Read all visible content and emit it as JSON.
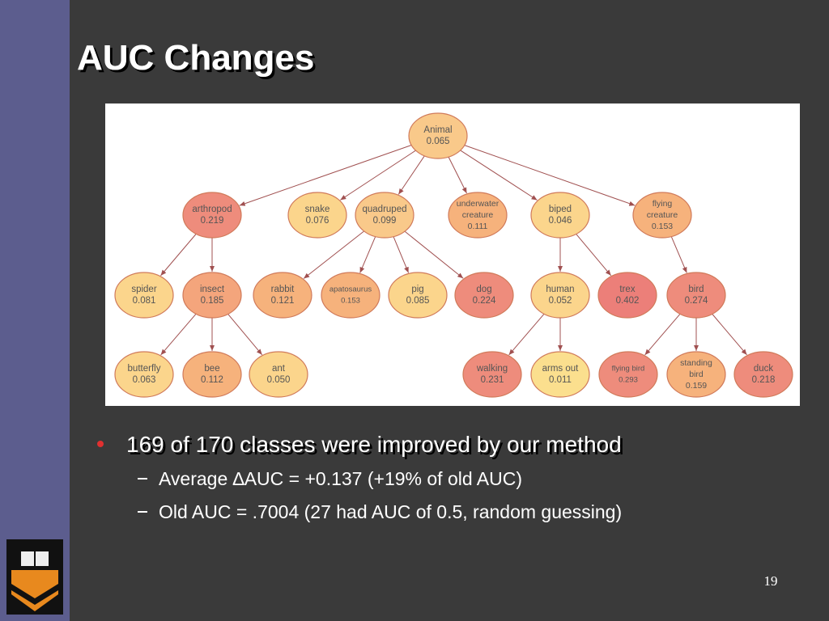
{
  "title": "AUC Changes",
  "diagram": {
    "nodes": [
      {
        "lines": [
          "Animal"
        ],
        "value": "0.065",
        "color": "#f9c98a"
      },
      {
        "lines": [
          "arthropod"
        ],
        "value": "0.219",
        "color": "#ee8c7c"
      },
      {
        "lines": [
          "snake"
        ],
        "value": "0.076",
        "color": "#fbd58c"
      },
      {
        "lines": [
          "quadruped"
        ],
        "value": "0.099",
        "color": "#f9c98a"
      },
      {
        "lines": [
          "underwater",
          "creature"
        ],
        "value": "0.111",
        "color": "#f6b27c"
      },
      {
        "lines": [
          "biped"
        ],
        "value": "0.046",
        "color": "#fbd58c"
      },
      {
        "lines": [
          "flying",
          "creature"
        ],
        "value": "0.153",
        "color": "#f6b27c"
      },
      {
        "lines": [
          "spider"
        ],
        "value": "0.081",
        "color": "#fbd58c"
      },
      {
        "lines": [
          "insect"
        ],
        "value": "0.185",
        "color": "#f4a57c"
      },
      {
        "lines": [
          "rabbit"
        ],
        "value": "0.121",
        "color": "#f6b27c"
      },
      {
        "lines": [
          "apatosaurus"
        ],
        "value": "0.153",
        "color": "#f6b27c"
      },
      {
        "lines": [
          "pig"
        ],
        "value": "0.085",
        "color": "#fbd58c"
      },
      {
        "lines": [
          "dog"
        ],
        "value": "0.224",
        "color": "#ee8c7c"
      },
      {
        "lines": [
          "human"
        ],
        "value": "0.052",
        "color": "#fbd58c"
      },
      {
        "lines": [
          "trex"
        ],
        "value": "0.402",
        "color": "#ec7f79"
      },
      {
        "lines": [
          "bird"
        ],
        "value": "0.274",
        "color": "#ee8c7c"
      },
      {
        "lines": [
          "butterfly"
        ],
        "value": "0.063",
        "color": "#fbd58c"
      },
      {
        "lines": [
          "bee"
        ],
        "value": "0.112",
        "color": "#f6b27c"
      },
      {
        "lines": [
          "ant"
        ],
        "value": "0.050",
        "color": "#fbd58c"
      },
      {
        "lines": [
          "walking"
        ],
        "value": "0.231",
        "color": "#ee8c7c"
      },
      {
        "lines": [
          "arms out"
        ],
        "value": "0.011",
        "color": "#fbdf8e"
      },
      {
        "lines": [
          "flying bird"
        ],
        "value": "0.293",
        "color": "#ee8c7c"
      },
      {
        "lines": [
          "standing",
          "bird"
        ],
        "value": "0.159",
        "color": "#f6b27c"
      },
      {
        "lines": [
          "duck"
        ],
        "value": "0.218",
        "color": "#ee8c7c"
      }
    ]
  },
  "bullets": [
    {
      "text": "169 of 170 classes were improved by our method",
      "sub": [
        "Average ∆AUC = +0.137 (+19% of old AUC)",
        "Old AUC = .7004 (27 had AUC of 0.5, random guessing)"
      ]
    }
  ],
  "page_number": "19"
}
